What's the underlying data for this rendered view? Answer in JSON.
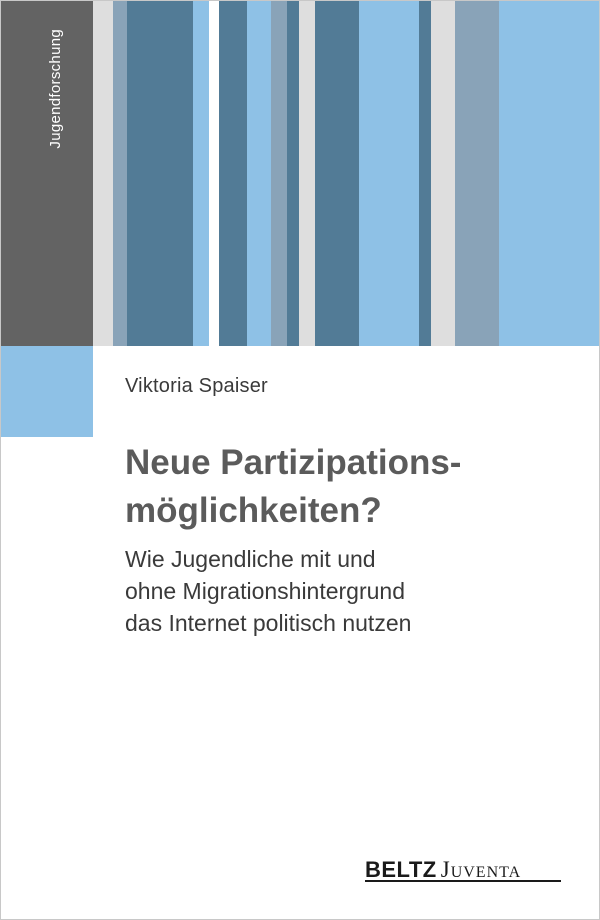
{
  "cover": {
    "series": "Jugendforschung",
    "author": "Viktoria Spaiser",
    "title_lines": [
      "Neue Partizipations-",
      "möglichkeiten?"
    ],
    "subtitle_lines": [
      "Wie Jugendliche mit und",
      "ohne Migrationshintergrund",
      "das Internet politisch nutzen"
    ],
    "publisher": {
      "part1": "BELTZ",
      "part2": "Juventa"
    }
  },
  "colors": {
    "spine": "#636363",
    "accent_blue": "#8ec1e6",
    "steel_blue": "#527b96",
    "grey_blue": "#89a3b8",
    "light_grey": "#dedede"
  }
}
